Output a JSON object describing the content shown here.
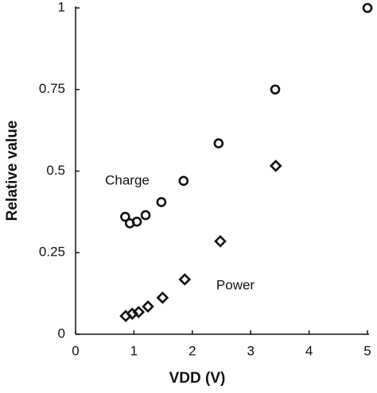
{
  "chart_data": {
    "type": "scatter",
    "x_label": "VDD  (V)",
    "y_label": "Relative  value",
    "xlim": [
      0,
      5
    ],
    "xticks": [
      0,
      1,
      2,
      3,
      4,
      5
    ],
    "ylim": [
      0,
      1
    ],
    "yticks": [
      0,
      0.25,
      0.5,
      0.75,
      1
    ],
    "series": [
      {
        "name": "Charge",
        "marker": "circle",
        "color": "#111111",
        "x": [
          0.85,
          0.93,
          1.05,
          1.2,
          1.47,
          1.85,
          2.45,
          3.42,
          5
        ],
        "values": [
          0.36,
          0.34,
          0.345,
          0.365,
          0.405,
          0.47,
          0.585,
          0.75,
          1
        ]
      },
      {
        "name": "Power",
        "marker": "diamond",
        "color": "#111111",
        "x": [
          0.86,
          0.97,
          1.08,
          1.24,
          1.49,
          1.87,
          2.48,
          3.43
        ],
        "values": [
          0.056,
          0.063,
          0.068,
          0.085,
          0.112,
          0.168,
          0.285,
          0.516
        ]
      }
    ]
  }
}
